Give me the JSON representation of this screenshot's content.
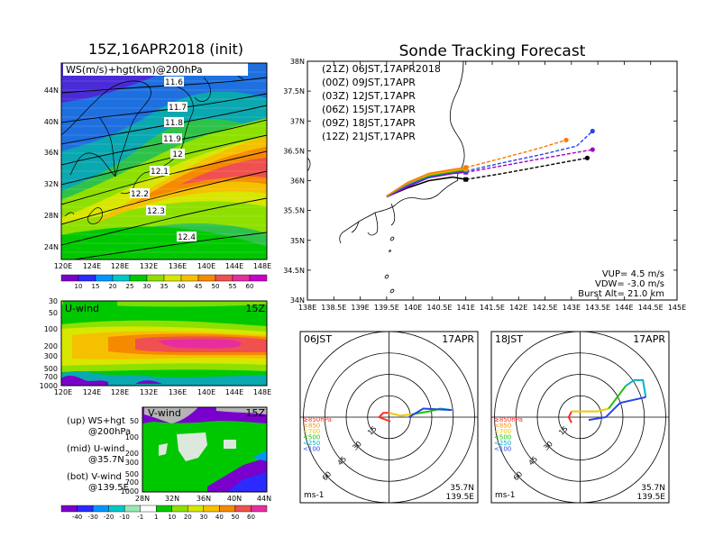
{
  "left": {
    "title": "15Z,16APR2018 (init)",
    "map": {
      "label": "WS(m/s)+hgt(km)@200hPa",
      "contour_labels": [
        "11.6",
        "11.7",
        "11.8",
        "11.9",
        "12",
        "12.1",
        "12.2",
        "12.3",
        "12.4"
      ],
      "lat_ticks": [
        "44N",
        "40N",
        "36N",
        "32N",
        "28N",
        "24N"
      ],
      "lon_ticks": [
        "120E",
        "124E",
        "128E",
        "132E",
        "136E",
        "140E",
        "144E",
        "148E"
      ]
    },
    "colorbar1": {
      "labels": [
        "10",
        "15",
        "20",
        "25",
        "30",
        "35",
        "40",
        "45",
        "50",
        "55",
        "60"
      ],
      "colors": [
        "#7a00cc",
        "#2b2bff",
        "#0096ff",
        "#00c8c8",
        "#00c800",
        "#8ee000",
        "#d8e600",
        "#f5c000",
        "#f58a00",
        "#f05050",
        "#e62ea0",
        "#c800c8"
      ]
    },
    "uwind": {
      "label": "U-wind",
      "time": "15Z",
      "y_ticks": [
        "30",
        "50",
        "100",
        "200",
        "300",
        "500",
        "700",
        "1000"
      ],
      "x_ticks": [
        "120E",
        "124E",
        "128E",
        "132E",
        "136E",
        "140E",
        "144E",
        "148E"
      ]
    },
    "vwind": {
      "label": "V-wind",
      "time": "15Z",
      "y_ticks": [
        "50",
        "100",
        "200",
        "300",
        "500",
        "700",
        "1000"
      ],
      "x_ticks": [
        "28N",
        "32N",
        "36N",
        "40N",
        "44N"
      ]
    },
    "notes": [
      {
        "a": "(up) WS+hgt",
        "b": "@200hPa"
      },
      {
        "a": "(mid) U-wind",
        "b": "@35.7N"
      },
      {
        "a": "(bot) V-wind",
        "b": "@139.5E"
      }
    ],
    "colorbar2": {
      "labels": [
        "-40",
        "-30",
        "-20",
        "-10",
        "-1",
        "1",
        "10",
        "20",
        "30",
        "40",
        "50",
        "60"
      ],
      "colors": [
        "#7a00cc",
        "#2b2bff",
        "#0096ff",
        "#00c8c8",
        "#9be7b4",
        "#ffffff",
        "#00c800",
        "#8ee000",
        "#d8e600",
        "#f5c000",
        "#f58a00",
        "#f05050",
        "#e62ea0"
      ]
    }
  },
  "tracking": {
    "title": "Sonde Tracking Forecast",
    "legend": [
      {
        "label": "(21Z)  06JST,17APR2018",
        "color": "#000000"
      },
      {
        "label": "(00Z)  09JST,17APR",
        "color": "#a000c8"
      },
      {
        "label": "(03Z)  12JST,17APR",
        "color": "#2846e6"
      },
      {
        "label": "(06Z)  15JST,17APR",
        "color": "#28b400"
      },
      {
        "label": "(09Z)  18JST,17APR",
        "color": "#f0b400"
      },
      {
        "label": "(12Z)  21JST,17APR",
        "color": "#ff7800"
      }
    ],
    "x_ticks": [
      "138E",
      "138.5E",
      "139E",
      "139.5E",
      "140E",
      "140.5E",
      "141E",
      "141.5E",
      "142E",
      "142.5E",
      "143E",
      "143.5E",
      "144E",
      "144.5E",
      "145E"
    ],
    "y_ticks": [
      "38N",
      "37.5N",
      "37N",
      "36.5N",
      "36N",
      "35.5N",
      "35N",
      "34.5N",
      "34N"
    ],
    "params": [
      "VUP=  4.5 m/s",
      "VDW= -3.0 m/s",
      "Burst Alt= 21.0 km"
    ],
    "chart_data": {
      "type": "line",
      "xlim": [
        138,
        145
      ],
      "ylim": [
        34,
        38
      ],
      "series": [
        {
          "name": "(21Z)  06JST,17APR2018",
          "color": "#000000",
          "ascent": [
            [
              139.5,
              35.73
            ],
            [
              139.9,
              35.88
            ],
            [
              140.3,
              36.0
            ],
            [
              140.75,
              36.06
            ],
            [
              141.0,
              36.02
            ]
          ],
          "descent": [
            [
              141.0,
              36.02
            ],
            [
              141.7,
              36.12
            ],
            [
              142.5,
              36.25
            ],
            [
              143.3,
              36.38
            ]
          ]
        },
        {
          "name": "(00Z)  09JST,17APR",
          "color": "#a000c8",
          "ascent": [
            [
              139.5,
              35.73
            ],
            [
              139.9,
              35.9
            ],
            [
              140.3,
              36.05
            ],
            [
              140.75,
              36.12
            ],
            [
              141.0,
              36.14
            ]
          ],
          "descent": [
            [
              141.0,
              36.14
            ],
            [
              141.7,
              36.25
            ],
            [
              142.5,
              36.38
            ],
            [
              143.4,
              36.52
            ]
          ]
        },
        {
          "name": "(03Z)  12JST,17APR",
          "color": "#2846e6",
          "ascent": [
            [
              139.5,
              35.73
            ],
            [
              139.9,
              35.92
            ],
            [
              140.3,
              36.06
            ],
            [
              140.75,
              36.14
            ],
            [
              141.0,
              36.16
            ]
          ],
          "descent": [
            [
              141.0,
              36.16
            ],
            [
              141.7,
              36.3
            ],
            [
              142.5,
              36.45
            ],
            [
              143.1,
              36.58
            ],
            [
              143.4,
              36.83
            ]
          ]
        },
        {
          "name": "(06Z)  15JST,17APR",
          "color": "#28b400",
          "ascent": [
            [
              139.5,
              35.74
            ],
            [
              139.9,
              35.95
            ],
            [
              140.3,
              36.08
            ],
            [
              140.7,
              36.14
            ],
            [
              141.0,
              36.18
            ]
          ],
          "descent": []
        },
        {
          "name": "(09Z)  18JST,17APR",
          "color": "#f0b400",
          "ascent": [
            [
              139.5,
              35.74
            ],
            [
              139.9,
              35.96
            ],
            [
              140.3,
              36.1
            ],
            [
              140.7,
              36.16
            ],
            [
              141.0,
              36.2
            ]
          ],
          "descent": []
        },
        {
          "name": "(12Z)  21JST,17APR",
          "color": "#ff7800",
          "ascent": [
            [
              139.5,
              35.74
            ],
            [
              139.9,
              35.97
            ],
            [
              140.3,
              36.12
            ],
            [
              140.7,
              36.18
            ],
            [
              141.0,
              36.22
            ]
          ],
          "descent": [
            [
              141.0,
              36.22
            ],
            [
              141.7,
              36.38
            ],
            [
              142.3,
              36.52
            ],
            [
              142.9,
              36.68
            ]
          ]
        }
      ]
    }
  },
  "hodographs": [
    {
      "time": "06JST",
      "date": "17APR",
      "ring_labels": [
        "15",
        "30",
        "45",
        "60"
      ],
      "unit": "ms-1",
      "lat": "35.7N",
      "lon": "139.5E",
      "levels": [
        {
          "label": "≥850hPa",
          "color": "#ff2a2a"
        },
        {
          "label": "<850",
          "color": "#ff8c00"
        },
        {
          "label": "<700",
          "color": "#f0c800"
        },
        {
          "label": "<500",
          "color": "#20c000"
        },
        {
          "label": "<250",
          "color": "#00b4c8"
        },
        {
          "label": "<100",
          "color": "#2846e6"
        }
      ],
      "chart_data": {
        "type": "line",
        "xlim": [
          -60,
          60
        ],
        "ylim": [
          -60,
          60
        ],
        "segments": [
          {
            "color": "#ff2a2a",
            "points": [
              [
                1,
                -3
              ],
              [
                -7,
                0
              ],
              [
                -4,
                3
              ],
              [
                0,
                3
              ]
            ]
          },
          {
            "color": "#f0c800",
            "points": [
              [
                0,
                3
              ],
              [
                8,
                1
              ],
              [
                16,
                2
              ]
            ]
          },
          {
            "color": "#20c000",
            "points": [
              [
                16,
                2
              ],
              [
                28,
                4
              ],
              [
                36,
                6
              ]
            ]
          },
          {
            "color": "#00b4c8",
            "points": [
              [
                36,
                6
              ],
              [
                44,
                5
              ]
            ]
          },
          {
            "color": "#2846e6",
            "points": [
              [
                44,
                5
              ],
              [
                24,
                6
              ],
              [
                14,
                0
              ]
            ]
          }
        ]
      }
    },
    {
      "time": "18JST",
      "date": "17APR",
      "ring_labels": [
        "15",
        "30",
        "45",
        "60"
      ],
      "unit": "ms-1",
      "lat": "35.7N",
      "lon": "139.5E",
      "levels": [
        {
          "label": "≥850hPa",
          "color": "#ff2a2a"
        },
        {
          "label": "<850",
          "color": "#ff8c00"
        },
        {
          "label": "<700",
          "color": "#f0c800"
        },
        {
          "label": "<500",
          "color": "#20c000"
        },
        {
          "label": "<250",
          "color": "#00b4c8"
        },
        {
          "label": "<100",
          "color": "#2846e6"
        }
      ],
      "chart_data": {
        "type": "line",
        "xlim": [
          -60,
          60
        ],
        "ylim": [
          -60,
          60
        ],
        "segments": [
          {
            "color": "#ff2a2a",
            "points": [
              [
                -6,
                -4
              ],
              [
                -8,
                0
              ],
              [
                -6,
                4
              ]
            ]
          },
          {
            "color": "#f0c800",
            "points": [
              [
                -6,
                4
              ],
              [
                12,
                4
              ],
              [
                20,
                6
              ]
            ]
          },
          {
            "color": "#20c000",
            "points": [
              [
                20,
                6
              ],
              [
                26,
                14
              ],
              [
                32,
                22
              ]
            ]
          },
          {
            "color": "#00b4c8",
            "points": [
              [
                32,
                22
              ],
              [
                38,
                26
              ],
              [
                44,
                26
              ],
              [
                46,
                14
              ]
            ]
          },
          {
            "color": "#2846e6",
            "points": [
              [
                46,
                14
              ],
              [
                28,
                10
              ],
              [
                18,
                0
              ],
              [
                6,
                -2
              ]
            ]
          }
        ]
      }
    }
  ]
}
